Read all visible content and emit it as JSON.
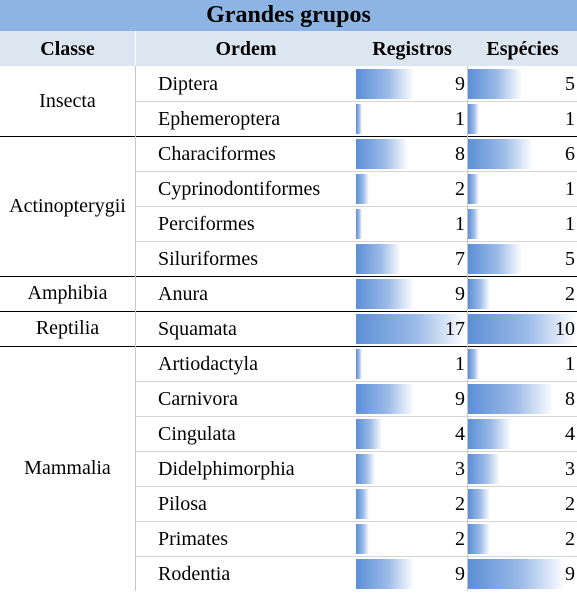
{
  "title": "Grandes grupos",
  "headers": {
    "classe": "Classe",
    "ordem": "Ordem",
    "registros": "Registros",
    "especies": "Espécies"
  },
  "max_registros": 17,
  "max_especies": 10,
  "groups": [
    {
      "classe": "Insecta",
      "rows": [
        {
          "ordem": "Diptera",
          "registros": 9,
          "especies": 5
        },
        {
          "ordem": "Ephemeroptera",
          "registros": 1,
          "especies": 1
        }
      ]
    },
    {
      "classe": "Actinopterygii",
      "rows": [
        {
          "ordem": "Characiformes",
          "registros": 8,
          "especies": 6
        },
        {
          "ordem": "Cyprinodontiformes",
          "registros": 2,
          "especies": 1
        },
        {
          "ordem": "Perciformes",
          "registros": 1,
          "especies": 1
        },
        {
          "ordem": "Siluriformes",
          "registros": 7,
          "especies": 5
        }
      ]
    },
    {
      "classe": "Amphibia",
      "rows": [
        {
          "ordem": "Anura",
          "registros": 9,
          "especies": 2
        }
      ]
    },
    {
      "classe": "Reptilia",
      "rows": [
        {
          "ordem": "Squamata",
          "registros": 17,
          "especies": 10
        }
      ]
    },
    {
      "classe": "Mammalia",
      "rows": [
        {
          "ordem": "Artiodactyla",
          "registros": 1,
          "especies": 1
        },
        {
          "ordem": "Carnivora",
          "registros": 9,
          "especies": 8
        },
        {
          "ordem": "Cingulata",
          "registros": 4,
          "especies": 4
        },
        {
          "ordem": "Didelphimorphia",
          "registros": 3,
          "especies": 3
        },
        {
          "ordem": "Pilosa",
          "registros": 2,
          "especies": 2
        },
        {
          "ordem": "Primates",
          "registros": 2,
          "especies": 2
        },
        {
          "ordem": "Rodentia",
          "registros": 9,
          "especies": 9
        }
      ]
    }
  ]
}
